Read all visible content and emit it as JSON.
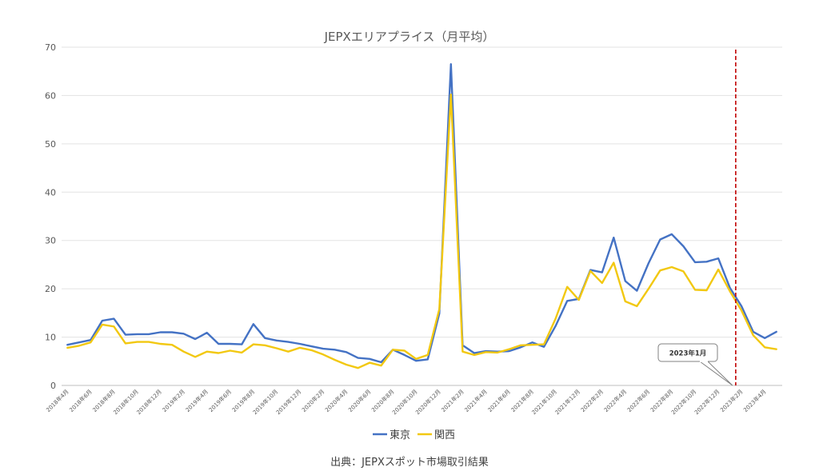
{
  "chart_data": {
    "type": "line",
    "title": "JEPXエリアプライス（月平均）",
    "source": "出典：JEPXスポット市場取引結果",
    "ylim": [
      0,
      70
    ],
    "yticks": [
      "0",
      "10",
      "20",
      "30",
      "40",
      "50",
      "60",
      "70"
    ],
    "grid": true,
    "legend": "bottom",
    "x": [
      "2018年4月",
      "2018年5月",
      "2018年6月",
      "2018年7月",
      "2018年8月",
      "2018年9月",
      "2018年10月",
      "2018年11月",
      "2018年12月",
      "2019年1月",
      "2019年2月",
      "2019年3月",
      "2019年4月",
      "2019年5月",
      "2019年6月",
      "2019年7月",
      "2019年8月",
      "2019年9月",
      "2019年10月",
      "2019年11月",
      "2019年12月",
      "2020年1月",
      "2020年2月",
      "2020年3月",
      "2020年4月",
      "2020年5月",
      "2020年6月",
      "2020年7月",
      "2020年8月",
      "2020年9月",
      "2020年10月",
      "2020年11月",
      "2020年12月",
      "2021年1月",
      "2021年2月",
      "2021年3月",
      "2021年4月",
      "2021年5月",
      "2021年6月",
      "2021年7月",
      "2021年8月",
      "2021年9月",
      "2021年10月",
      "2021年11月",
      "2021年12月",
      "2022年1月",
      "2022年2月",
      "2022年3月",
      "2022年4月",
      "2022年5月",
      "2022年6月",
      "2022年7月",
      "2022年8月",
      "2022年9月",
      "2022年10月",
      "2022年11月",
      "2022年12月",
      "2023年1月",
      "2023年2月",
      "2023年3月",
      "2023年4月",
      "2023年5月"
    ],
    "xtick_labels": [
      "2018年4月",
      "",
      "2018年6月",
      "",
      "2018年8月",
      "",
      "2018年10月",
      "",
      "2018年12月",
      "",
      "2019年2月",
      "",
      "2019年4月",
      "",
      "2019年6月",
      "",
      "2019年8月",
      "",
      "2019年10月",
      "",
      "2019年12月",
      "",
      "2020年2月",
      "",
      "2020年4月",
      "",
      "2020年6月",
      "",
      "2020年8月",
      "",
      "2020年10月",
      "",
      "2020年12月",
      "",
      "2021年2月",
      "",
      "2021年4月",
      "",
      "2021年6月",
      "",
      "2021年8月",
      "",
      "2021年10月",
      "",
      "2021年12月",
      "",
      "2022年2月",
      "",
      "2022年4月",
      "",
      "2022年6月",
      "",
      "2022年8月",
      "",
      "2022年10月",
      "",
      "2022年12月",
      "",
      "2023年2月",
      "",
      "2023年4月",
      ""
    ],
    "series": [
      {
        "name": "東京",
        "color": "#4472C4",
        "values": [
          8.4,
          8.9,
          9.4,
          13.4,
          13.8,
          10.5,
          10.6,
          10.6,
          11.0,
          11.0,
          10.7,
          9.6,
          10.9,
          8.6,
          8.6,
          8.5,
          12.7,
          9.8,
          9.3,
          9.0,
          8.6,
          8.1,
          7.6,
          7.4,
          6.9,
          5.7,
          5.5,
          4.8,
          7.4,
          6.3,
          5.1,
          5.4,
          14.9,
          66.5,
          8.3,
          6.7,
          7.1,
          7.0,
          7.1,
          7.9,
          8.9,
          8.0,
          12.3,
          17.5,
          17.9,
          23.9,
          23.4,
          30.6,
          21.6,
          19.6,
          25.3,
          30.2,
          31.3,
          28.8,
          25.5,
          25.6,
          26.3,
          20.2,
          16.4,
          11.1,
          9.8,
          11.1
        ]
      },
      {
        "name": "関西",
        "color": "#F2C811",
        "values": [
          7.8,
          8.2,
          8.9,
          12.6,
          12.2,
          8.7,
          9.0,
          9.0,
          8.6,
          8.4,
          7.0,
          5.9,
          7.0,
          6.7,
          7.2,
          6.8,
          8.5,
          8.3,
          7.7,
          7.0,
          7.8,
          7.3,
          6.4,
          5.3,
          4.3,
          3.6,
          4.7,
          4.1,
          7.4,
          7.2,
          5.5,
          6.3,
          15.8,
          60.2,
          7.0,
          6.3,
          6.9,
          6.8,
          7.5,
          8.3,
          8.4,
          8.5,
          13.8,
          20.4,
          17.7,
          23.7,
          21.2,
          25.4,
          17.4,
          16.4,
          20.0,
          23.8,
          24.5,
          23.6,
          19.8,
          19.7,
          24.0,
          19.5,
          15.5,
          10.4,
          7.9,
          7.5
        ]
      }
    ],
    "annotations": [
      {
        "text": "2023年1月",
        "x": "2023年1月",
        "style": "dashed-vertical-line",
        "color": "#C00000"
      }
    ]
  }
}
